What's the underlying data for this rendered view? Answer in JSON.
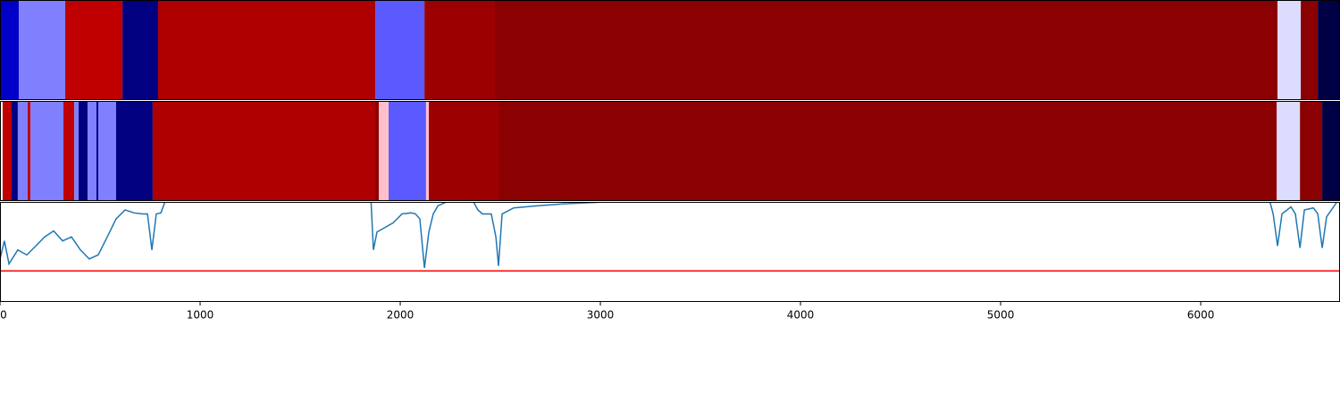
{
  "chart_data": [
    {
      "type": "segments",
      "bins": [
        0,
        94,
        326,
        612,
        790,
        1875,
        2121,
        2473,
        6384,
        6500,
        6585,
        6696
      ],
      "colors": [
        "#0000c8",
        "#8080ff",
        "#c00000",
        "#000080",
        "#ae0000",
        "#5a5aff",
        "#9c0000",
        "#8b0000",
        "#dcdcff",
        "#8b0000",
        "#000045"
      ],
      "xlim": [
        0,
        6696
      ]
    },
    {
      "type": "segments",
      "bins": [
        13,
        58,
        89,
        138,
        152,
        317,
        371,
        393,
        438,
        482,
        491,
        580,
        763,
        1875,
        1893,
        1942,
        2129,
        2143,
        2491,
        6380,
        6496,
        6607,
        6696
      ],
      "colors": [
        "#c00000",
        "#000080",
        "#8080ff",
        "#c00000",
        "#8080ff",
        "#c00000",
        "#8080ff",
        "#000080",
        "#8080ff",
        "#000080",
        "#8080ff",
        "#000080",
        "#ae0000",
        "#8b0000",
        "#ffc0cb",
        "#5a5aff",
        "#ffc0cb",
        "#9c0000",
        "#8b0000",
        "#dcdcff",
        "#8b0000",
        "#000045"
      ],
      "xlim": [
        0,
        6696
      ]
    },
    {
      "type": "line",
      "x": [
        0,
        22,
        45,
        89,
        134,
        179,
        223,
        268,
        313,
        357,
        402,
        446,
        491,
        536,
        580,
        625,
        670,
        714,
        737,
        759,
        781,
        804,
        826,
        893,
        1853,
        1866,
        1884,
        1920,
        1964,
        2009,
        2054,
        2076,
        2098,
        2121,
        2143,
        2165,
        2188,
        2232,
        2277,
        2366,
        2388,
        2411,
        2455,
        2478,
        2491,
        2509,
        2567,
        2679,
        2813,
        3036,
        3125,
        6339,
        6362,
        6384,
        6406,
        6451,
        6473,
        6496,
        6518,
        6563,
        6585,
        6607,
        6629,
        6674,
        6696
      ],
      "series": [
        {
          "color": "#1f77b4",
          "values": [
            0.43,
            0.61,
            0.38,
            0.52,
            0.47,
            0.56,
            0.65,
            0.71,
            0.61,
            0.65,
            0.52,
            0.43,
            0.47,
            0.65,
            0.83,
            0.92,
            0.89,
            0.88,
            0.88,
            0.52,
            0.88,
            0.89,
            1.01,
            1.05,
            1.05,
            0.52,
            0.7,
            0.74,
            0.79,
            0.88,
            0.89,
            0.88,
            0.83,
            0.34,
            0.7,
            0.88,
            0.96,
            1.0,
            1.0,
            1.0,
            0.92,
            0.88,
            0.88,
            0.65,
            0.36,
            0.88,
            0.94,
            0.96,
            0.98,
            1.0,
            1.05,
            1.05,
            0.88,
            0.56,
            0.88,
            0.95,
            0.88,
            0.54,
            0.92,
            0.94,
            0.88,
            0.54,
            0.85,
            0.98,
            1.05
          ]
        }
      ],
      "threshold": 0.31,
      "threshold_color": "#ff0000",
      "xlim": [
        0,
        6696
      ],
      "ylim": [
        0,
        1
      ],
      "xticks": [
        0,
        1000,
        2000,
        3000,
        4000,
        5000,
        6000
      ]
    }
  ]
}
